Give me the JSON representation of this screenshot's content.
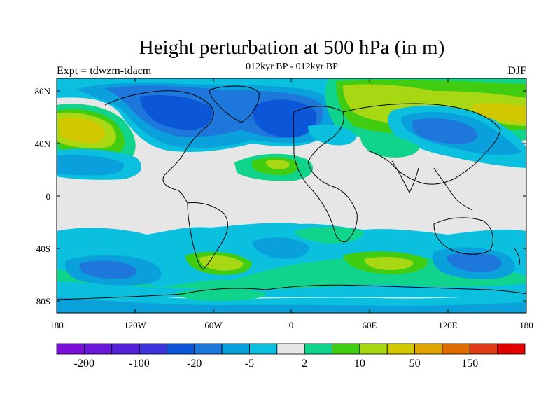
{
  "title": "Height perturbation at 500 hPa (in m)",
  "subtitle": "012kyr BP - 012kyr BP",
  "left_label": "Expt = tdwzm-tdacm",
  "right_label": "DJF",
  "lat_ticks": [
    "80N",
    "40N",
    "0",
    "40S",
    "80S"
  ],
  "lon_ticks": [
    "180",
    "120W",
    "60W",
    "0",
    "60E",
    "120E",
    "180"
  ],
  "colorbar": {
    "colors": [
      "#7a10d8",
      "#6a18d8",
      "#5420d8",
      "#3d34dc",
      "#0c56d8",
      "#1e78dc",
      "#0aa0dc",
      "#0ac0de",
      "#e6e6e6",
      "#10d48c",
      "#40cc10",
      "#a8d814",
      "#d2c800",
      "#e0a400",
      "#e06c00",
      "#e03c14",
      "#e00000"
    ],
    "labels": [
      "-200",
      "-100",
      "-20",
      "-5",
      "2",
      "10",
      "50",
      "150"
    ],
    "label_boundary_index": [
      1,
      3,
      5,
      7,
      9,
      11,
      13,
      15
    ]
  },
  "field_levels": [
    {
      "name": "strong-negative",
      "color": "#0c56d8"
    },
    {
      "name": "moderate-negative",
      "color": "#1e78dc"
    },
    {
      "name": "weak-negative",
      "color": "#0aa0dc"
    },
    {
      "name": "slight-negative",
      "color": "#0ac0de"
    },
    {
      "name": "neutral",
      "color": "#e6e6e6"
    },
    {
      "name": "slight-positive",
      "color": "#10d48c"
    },
    {
      "name": "weak-positive",
      "color": "#40cc10"
    },
    {
      "name": "moderate-positive",
      "color": "#a8d814"
    },
    {
      "name": "strong-positive",
      "color": "#d2c800"
    }
  ]
}
